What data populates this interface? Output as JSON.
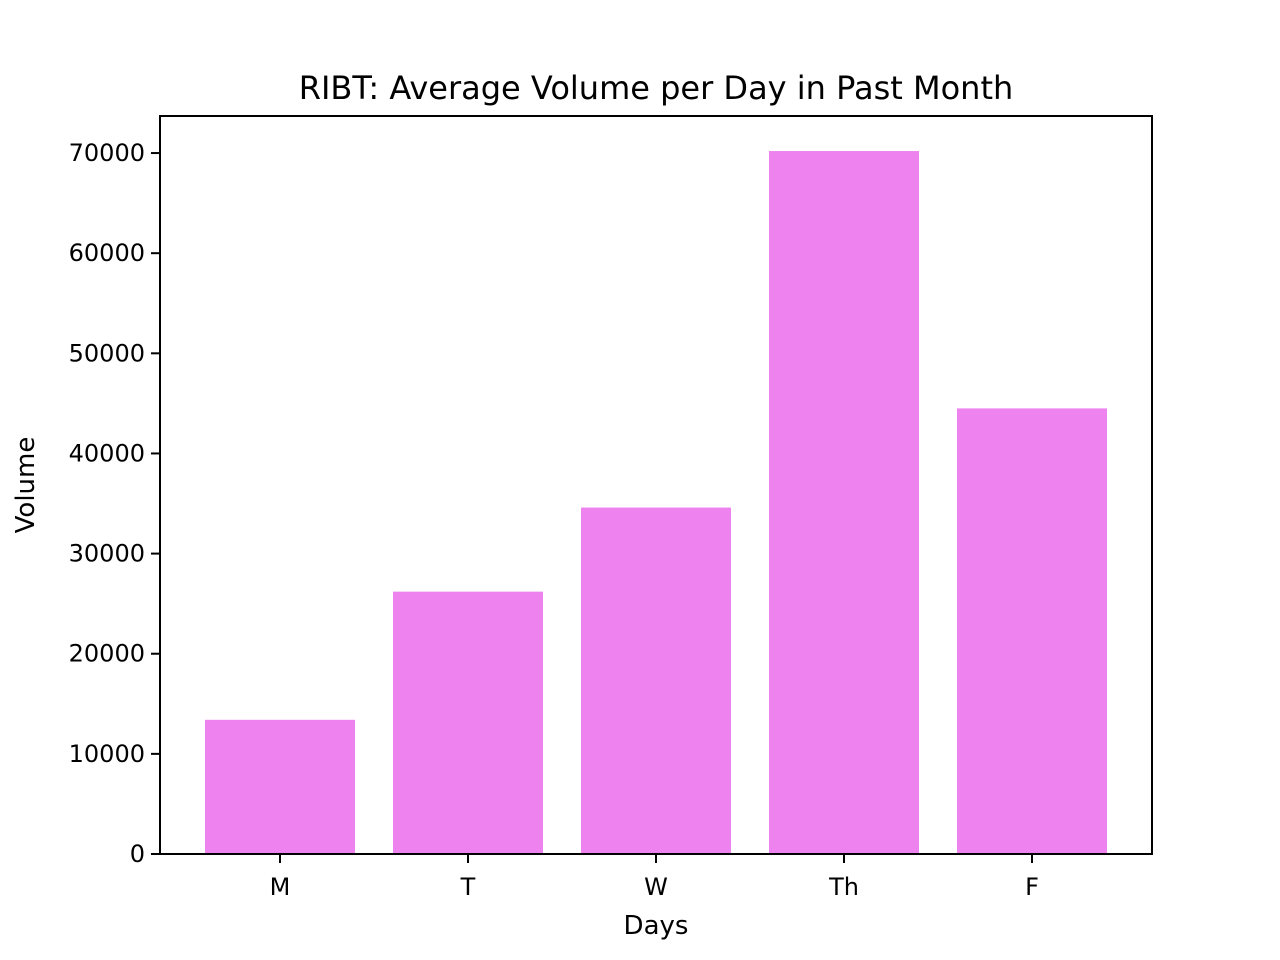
{
  "chart_data": {
    "type": "bar",
    "title": "RIBT: Average Volume per Day in Past Month",
    "xlabel": "Days",
    "ylabel": "Volume",
    "categories": [
      "M",
      "T",
      "W",
      "Th",
      "F"
    ],
    "values": [
      13400,
      26200,
      34600,
      70200,
      44500
    ],
    "ylim": [
      0,
      73700
    ],
    "yticks": [
      0,
      10000,
      20000,
      30000,
      40000,
      50000,
      60000,
      70000
    ],
    "ytick_labels": [
      "0",
      "10000",
      "20000",
      "30000",
      "40000",
      "50000",
      "60000",
      "70000"
    ],
    "bar_color": "#ee82ee",
    "grid": false,
    "legend": "none"
  }
}
